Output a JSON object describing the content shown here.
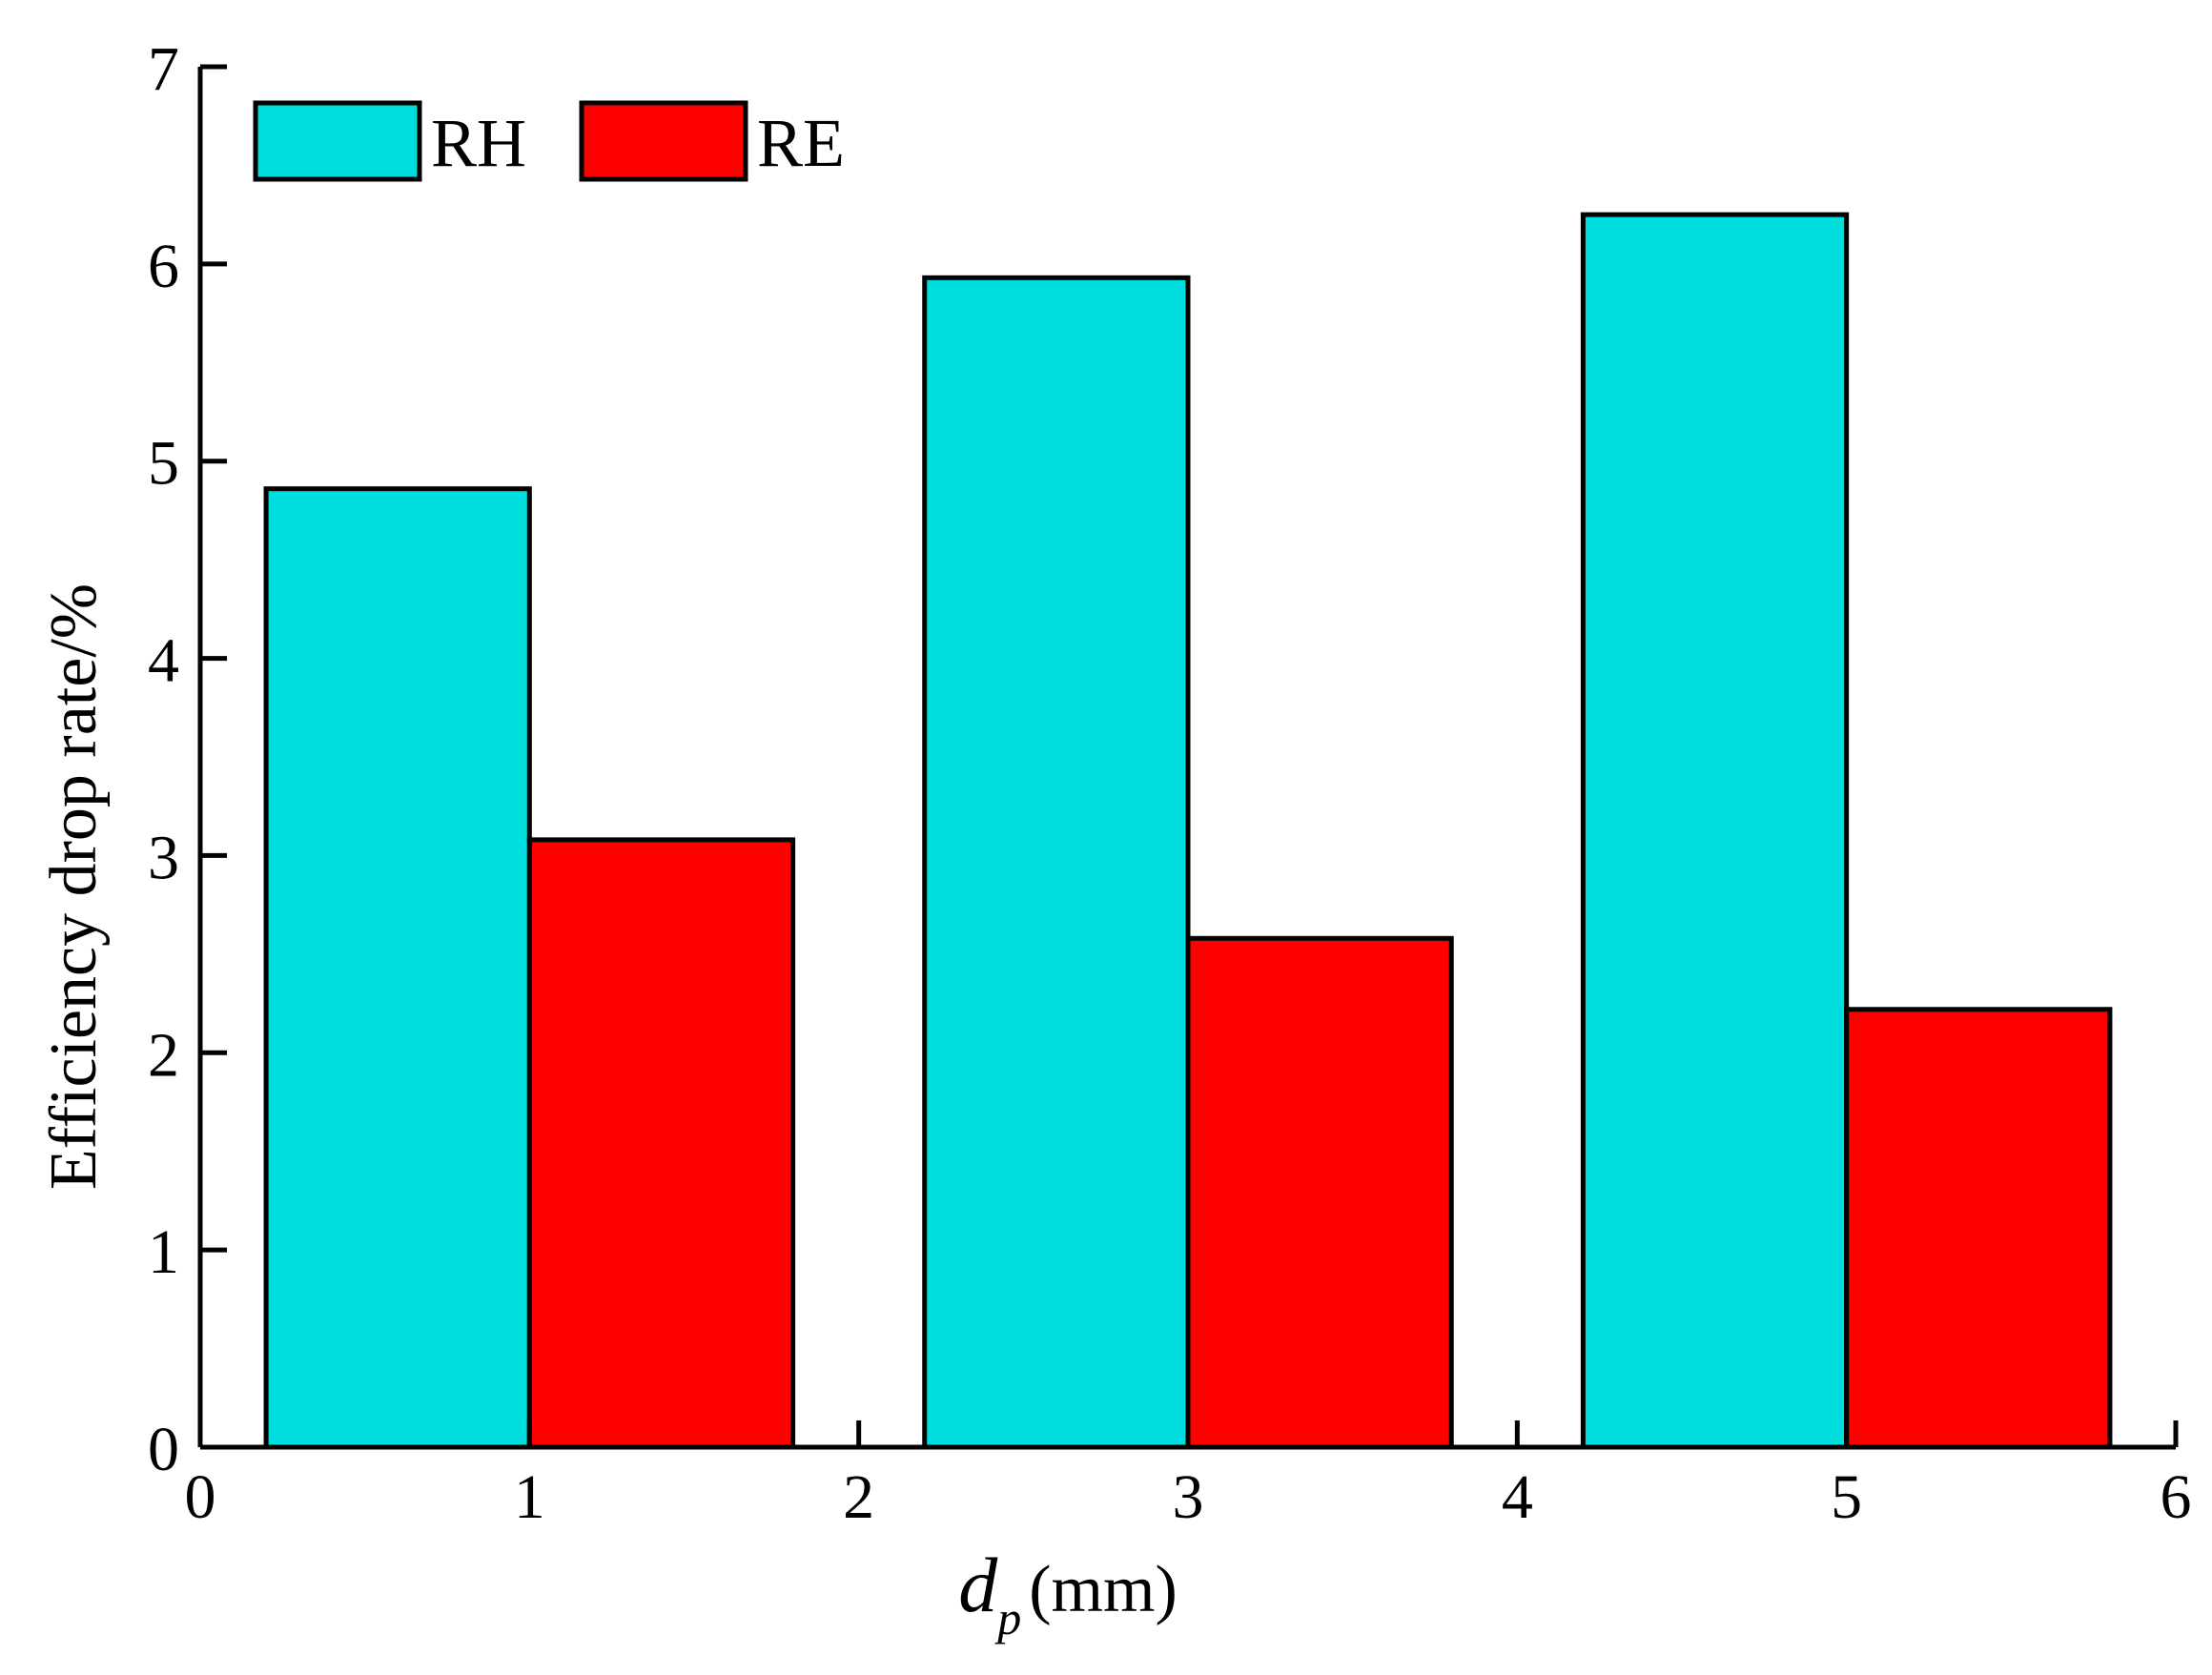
{
  "chart_data": {
    "type": "bar",
    "xlabel": "d",
    "xlabel_sub": "p",
    "xlabel_unit": "(mm)",
    "ylabel": "Efficiency drop rate/%",
    "xlim": [
      0,
      6
    ],
    "ylim": [
      0,
      7
    ],
    "x_ticks": [
      "0",
      "1",
      "2",
      "3",
      "4",
      "5",
      "6"
    ],
    "y_ticks": [
      "0",
      "1",
      "2",
      "3",
      "4",
      "5",
      "6",
      "7"
    ],
    "grid": false,
    "legend_position": "top-left",
    "bar_groups": [
      {
        "start": 0.2,
        "split": 1.0,
        "end": 1.8
      },
      {
        "start": 2.2,
        "split": 3.0,
        "end": 3.8
      },
      {
        "start": 4.2,
        "split": 5.0,
        "end": 5.8
      }
    ],
    "series": [
      {
        "name": "RH",
        "color": "#00DDDD",
        "values": [
          4.86,
          5.93,
          6.25
        ]
      },
      {
        "name": "RE",
        "color": "#FF0000",
        "values": [
          3.08,
          2.58,
          2.22
        ]
      }
    ]
  }
}
